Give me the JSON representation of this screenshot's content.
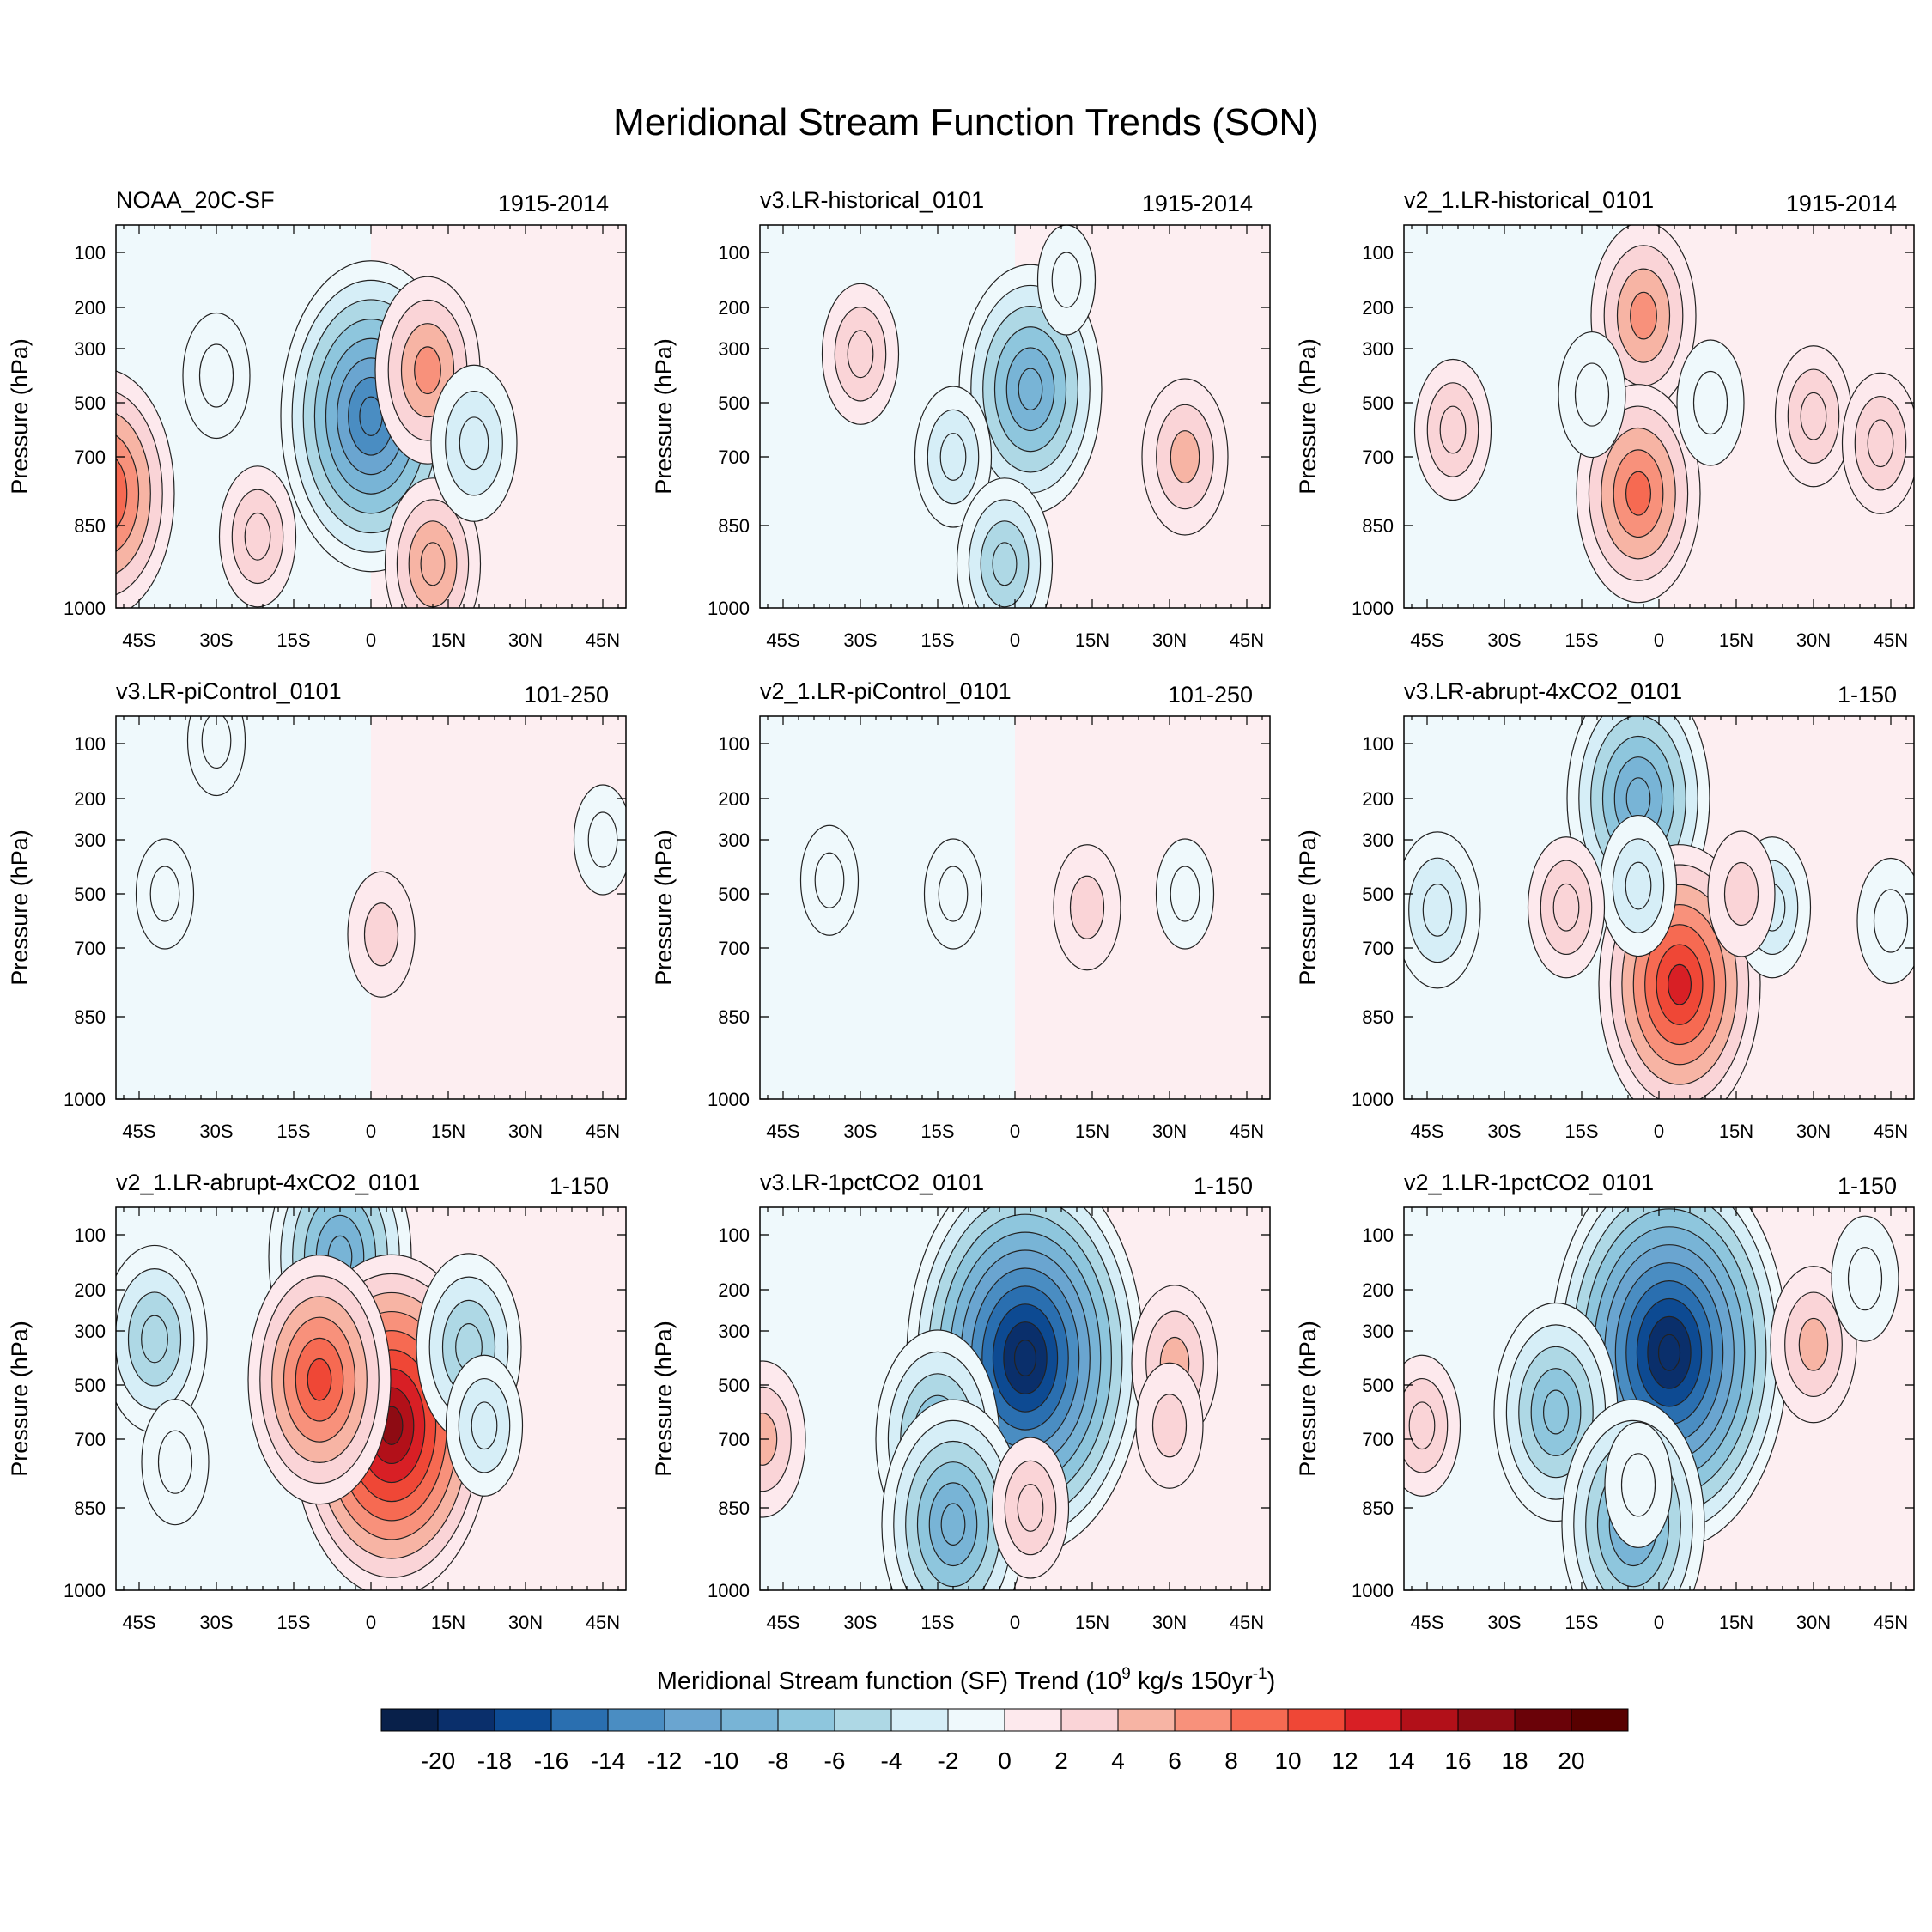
{
  "title": "Meridional Stream Function Trends (SON)",
  "chart_data": [
    {
      "type": "contour",
      "name": "NOAA_20C-SF",
      "period": "1915-2014",
      "ylabel": "Pressure (hPa)",
      "xticks": [
        "45S",
        "30S",
        "15S",
        "0",
        "15N",
        "30N",
        "45N"
      ],
      "yticks": [
        "100",
        "200",
        "300",
        "500",
        "700",
        "850",
        "1000"
      ],
      "features": [
        {
          "lat": 0,
          "p": 550,
          "value": -14
        },
        {
          "lat": -52,
          "p": 780,
          "value": 10
        },
        {
          "lat": 11,
          "p": 380,
          "value": 6
        },
        {
          "lat": 12,
          "p": 920,
          "value": 5
        },
        {
          "lat": -22,
          "p": 870,
          "value": 3
        },
        {
          "lat": 20,
          "p": 650,
          "value": -4
        },
        {
          "lat": -30,
          "p": 400,
          "value": -2
        }
      ]
    },
    {
      "type": "contour",
      "name": "v3.LR-historical_0101",
      "period": "1915-2014",
      "ylabel": "Pressure (hPa)",
      "xticks": [
        "45S",
        "30S",
        "15S",
        "0",
        "15N",
        "30N",
        "45N"
      ],
      "yticks": [
        "100",
        "200",
        "300",
        "500",
        "700",
        "850",
        "1000"
      ],
      "features": [
        {
          "lat": 3,
          "p": 450,
          "value": -10
        },
        {
          "lat": -12,
          "p": 700,
          "value": -3
        },
        {
          "lat": -2,
          "p": 920,
          "value": -5
        },
        {
          "lat": 33,
          "p": 700,
          "value": 4
        },
        {
          "lat": -30,
          "p": 320,
          "value": 3
        },
        {
          "lat": 10,
          "p": 150,
          "value": -1
        }
      ]
    },
    {
      "type": "contour",
      "name": "v2_1.LR-historical_0101",
      "period": "1915-2014",
      "ylabel": "Pressure (hPa)",
      "xticks": [
        "45S",
        "30S",
        "15S",
        "0",
        "15N",
        "30N",
        "45N"
      ],
      "yticks": [
        "100",
        "200",
        "300",
        "500",
        "700",
        "850",
        "1000"
      ],
      "features": [
        {
          "lat": -3,
          "p": 220,
          "value": 6
        },
        {
          "lat": -4,
          "p": 780,
          "value": 8
        },
        {
          "lat": -40,
          "p": 600,
          "value": 3
        },
        {
          "lat": 30,
          "p": 550,
          "value": 3
        },
        {
          "lat": 43,
          "p": 650,
          "value": 3
        },
        {
          "lat": -13,
          "p": 470,
          "value": -2
        },
        {
          "lat": 10,
          "p": 500,
          "value": -2
        }
      ]
    },
    {
      "type": "contour",
      "name": "v3.LR-piControl_0101",
      "period": "101-250",
      "ylabel": "Pressure (hPa)",
      "xticks": [
        "45S",
        "30S",
        "15S",
        "0",
        "15N",
        "30N",
        "45N"
      ],
      "yticks": [
        "100",
        "200",
        "300",
        "500",
        "700",
        "850",
        "1000"
      ],
      "features": [
        {
          "lat": -30,
          "p": 90,
          "value": -1
        },
        {
          "lat": 2,
          "p": 650,
          "value": 2
        },
        {
          "lat": -40,
          "p": 500,
          "value": -1
        },
        {
          "lat": 45,
          "p": 300,
          "value": -1
        }
      ]
    },
    {
      "type": "contour",
      "name": "v2_1.LR-piControl_0101",
      "period": "101-250",
      "ylabel": "Pressure (hPa)",
      "xticks": [
        "45S",
        "30S",
        "15S",
        "0",
        "15N",
        "30N",
        "45N"
      ],
      "yticks": [
        "100",
        "200",
        "300",
        "500",
        "700",
        "850",
        "1000"
      ],
      "features": [
        {
          "lat": -36,
          "p": 450,
          "value": -1
        },
        {
          "lat": -12,
          "p": 500,
          "value": -1
        },
        {
          "lat": 33,
          "p": 500,
          "value": -1
        },
        {
          "lat": 14,
          "p": 550,
          "value": 2
        }
      ]
    },
    {
      "type": "contour",
      "name": "v3.LR-abrupt-4xCO2_0101",
      "period": "1-150",
      "ylabel": "Pressure (hPa)",
      "xticks": [
        "45S",
        "30S",
        "15S",
        "0",
        "15N",
        "30N",
        "45N"
      ],
      "yticks": [
        "100",
        "200",
        "300",
        "500",
        "700",
        "850",
        "1000"
      ],
      "features": [
        {
          "lat": -4,
          "p": 200,
          "value": -10
        },
        {
          "lat": 4,
          "p": 780,
          "value": 12
        },
        {
          "lat": -4,
          "p": 470,
          "value": -3
        },
        {
          "lat": -43,
          "p": 560,
          "value": -4
        },
        {
          "lat": -18,
          "p": 550,
          "value": 3
        },
        {
          "lat": 22,
          "p": 550,
          "value": -3
        },
        {
          "lat": 16,
          "p": 500,
          "value": 2
        },
        {
          "lat": 45,
          "p": 600,
          "value": -2
        }
      ]
    },
    {
      "type": "contour",
      "name": "v2_1.LR-abrupt-4xCO2_0101",
      "period": "1-150",
      "ylabel": "Pressure (hPa)",
      "xticks": [
        "45S",
        "30S",
        "15S",
        "0",
        "15N",
        "30N",
        "45N"
      ],
      "yticks": [
        "100",
        "200",
        "300",
        "500",
        "700",
        "850",
        "1000"
      ],
      "features": [
        {
          "lat": -6,
          "p": 140,
          "value": -10
        },
        {
          "lat": 4,
          "p": 650,
          "value": 16
        },
        {
          "lat": -10,
          "p": 480,
          "value": 10
        },
        {
          "lat": -42,
          "p": 330,
          "value": -6
        },
        {
          "lat": 19,
          "p": 360,
          "value": -6
        },
        {
          "lat": 22,
          "p": 650,
          "value": -3
        },
        {
          "lat": -38,
          "p": 750,
          "value": -2
        }
      ]
    },
    {
      "type": "contour",
      "name": "v3.LR-1pctCO2_0101",
      "period": "1-150",
      "ylabel": "Pressure (hPa)",
      "xticks": [
        "45S",
        "30S",
        "15S",
        "0",
        "15N",
        "30N",
        "45N"
      ],
      "yticks": [
        "100",
        "200",
        "300",
        "500",
        "700",
        "850",
        "1000"
      ],
      "features": [
        {
          "lat": 2,
          "p": 400,
          "value": -20
        },
        {
          "lat": -15,
          "p": 700,
          "value": -8
        },
        {
          "lat": -12,
          "p": 880,
          "value": -10
        },
        {
          "lat": 3,
          "p": 850,
          "value": 3
        },
        {
          "lat": 31,
          "p": 420,
          "value": 4
        },
        {
          "lat": -49,
          "p": 700,
          "value": 4
        },
        {
          "lat": 30,
          "p": 650,
          "value": 2
        }
      ]
    },
    {
      "type": "contour",
      "name": "v2_1.LR-1pctCO2_0101",
      "period": "1-150",
      "ylabel": "Pressure (hPa)",
      "xticks": [
        "45S",
        "30S",
        "15S",
        "0",
        "15N",
        "30N",
        "45N"
      ],
      "yticks": [
        "100",
        "200",
        "300",
        "500",
        "700",
        "850",
        "1000"
      ],
      "features": [
        {
          "lat": 2,
          "p": 380,
          "value": -20
        },
        {
          "lat": -20,
          "p": 600,
          "value": -8
        },
        {
          "lat": -5,
          "p": 880,
          "value": -10
        },
        {
          "lat": -4,
          "p": 800,
          "value": -2
        },
        {
          "lat": 30,
          "p": 350,
          "value": 4
        },
        {
          "lat": -46,
          "p": 650,
          "value": 3
        },
        {
          "lat": 40,
          "p": 180,
          "value": -2
        }
      ]
    }
  ],
  "colorbar": {
    "label": "Meridional Stream function (SF) Trend (10",
    "label_sup1": "9",
    "label_mid": " kg/s 150yr",
    "label_sup2": "-1",
    "label_end": ")",
    "levels": [
      "-20",
      "-18",
      "-16",
      "-14",
      "-12",
      "-10",
      "-8",
      "-6",
      "-4",
      "-2",
      "0",
      "2",
      "4",
      "6",
      "8",
      "10",
      "12",
      "14",
      "16",
      "18",
      "20"
    ],
    "colors": [
      "#08204a",
      "#0a2f6b",
      "#0d4a92",
      "#2a6fb0",
      "#4a8dc2",
      "#6aa5d0",
      "#78b4d6",
      "#8ec6dd",
      "#aed8e5",
      "#d6eef7",
      "#eff9fc",
      "#fde9ed",
      "#fad4d7",
      "#f7b4a4",
      "#f8917b",
      "#f66a52",
      "#ef4736",
      "#d81f25",
      "#b21019",
      "#8e0b13",
      "#6a0208",
      "#580000"
    ]
  }
}
